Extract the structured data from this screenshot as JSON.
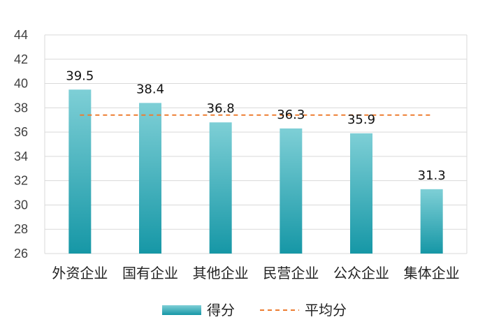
{
  "chart_data": {
    "type": "bar",
    "categories": [
      "外资企业",
      "国有企业",
      "其他企业",
      "民营企业",
      "公众企业",
      "集体企业"
    ],
    "series": [
      {
        "name": "得分",
        "type": "bar",
        "values": [
          39.5,
          38.4,
          36.8,
          36.3,
          35.9,
          31.3
        ]
      },
      {
        "name": "平均分",
        "type": "line",
        "style": "dashed",
        "values": [
          37.4,
          37.4,
          37.4,
          37.4,
          37.4,
          37.4
        ]
      }
    ],
    "data_labels": [
      "39.5",
      "38.4",
      "36.8",
      "36.3",
      "35.9",
      "31.3"
    ],
    "ylim": [
      26,
      44
    ],
    "yticks": [
      26,
      28,
      30,
      32,
      34,
      36,
      38,
      40,
      42,
      44
    ],
    "grid": true,
    "legend_position": "bottom",
    "colors": {
      "bar_top": "#7ecfd6",
      "bar_bottom": "#1697a6",
      "average_line": "#ed7d31",
      "grid": "#d9d9d9"
    }
  }
}
